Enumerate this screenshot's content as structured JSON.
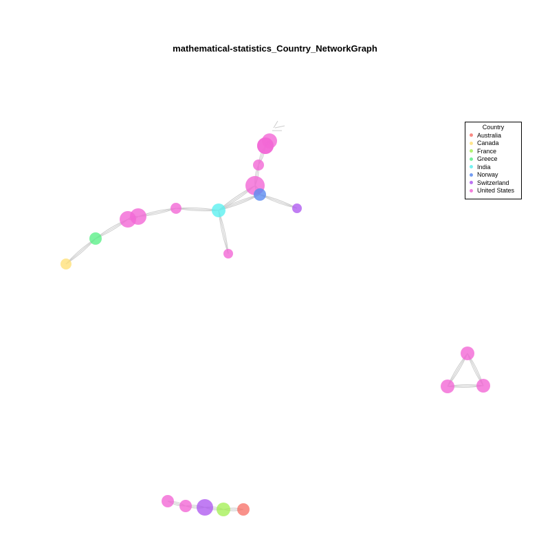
{
  "title": "mathematical-statistics_Country_NetworkGraph",
  "legend": {
    "title": "Country",
    "items": [
      {
        "label": "Australia",
        "color": "#F8766D"
      },
      {
        "label": "Canada",
        "color": "#FFE17A"
      },
      {
        "label": "France",
        "color": "#A6F05A"
      },
      {
        "label": "Greece",
        "color": "#5CF08A"
      },
      {
        "label": "India",
        "color": "#5CF0F0"
      },
      {
        "label": "Norway",
        "color": "#5C8CF0"
      },
      {
        "label": "Switzerland",
        "color": "#B05CF0"
      },
      {
        "label": "United States",
        "color": "#F268D6"
      }
    ]
  },
  "chart_data": {
    "type": "network",
    "edge_color": "#cccccc",
    "node_opacity": 0.8,
    "nodes": [
      {
        "id": "n1",
        "country": "United States"
      },
      {
        "id": "n2",
        "country": "United States"
      },
      {
        "id": "n3",
        "country": "United States"
      },
      {
        "id": "n4",
        "country": "United States"
      },
      {
        "id": "n5",
        "country": "United States"
      },
      {
        "id": "n6",
        "country": "Norway"
      },
      {
        "id": "n7",
        "country": "Switzerland"
      },
      {
        "id": "n8",
        "country": "India"
      },
      {
        "id": "n9",
        "country": "United States"
      },
      {
        "id": "n10",
        "country": "United States"
      },
      {
        "id": "n11",
        "country": "United States"
      },
      {
        "id": "n12",
        "country": "United States"
      },
      {
        "id": "n13",
        "country": "Greece"
      },
      {
        "id": "n14",
        "country": "Canada"
      },
      {
        "id": "n15",
        "country": "United States"
      },
      {
        "id": "n16",
        "country": "United States"
      },
      {
        "id": "n17",
        "country": "United States"
      },
      {
        "id": "n18",
        "country": "United States"
      },
      {
        "id": "n19",
        "country": "United States"
      },
      {
        "id": "n20",
        "country": "Switzerland"
      },
      {
        "id": "n21",
        "country": "France"
      },
      {
        "id": "n22",
        "country": "Australia"
      }
    ],
    "edges": [
      [
        "n1",
        "n2"
      ],
      [
        "n1",
        "n3"
      ],
      [
        "n2",
        "n3"
      ],
      [
        "n3",
        "n4"
      ],
      [
        "n4",
        "n5"
      ],
      [
        "n5",
        "n6"
      ],
      [
        "n5",
        "n8"
      ],
      [
        "n6",
        "n8"
      ],
      [
        "n6",
        "n7"
      ],
      [
        "n8",
        "n9"
      ],
      [
        "n8",
        "n10"
      ],
      [
        "n10",
        "n11"
      ],
      [
        "n11",
        "n12"
      ],
      [
        "n12",
        "n13"
      ],
      [
        "n13",
        "n14"
      ],
      [
        "n15",
        "n16"
      ],
      [
        "n15",
        "n17"
      ],
      [
        "n16",
        "n17"
      ],
      [
        "n18",
        "n19"
      ],
      [
        "n19",
        "n20"
      ],
      [
        "n20",
        "n21"
      ],
      [
        "n21",
        "n22"
      ]
    ]
  }
}
